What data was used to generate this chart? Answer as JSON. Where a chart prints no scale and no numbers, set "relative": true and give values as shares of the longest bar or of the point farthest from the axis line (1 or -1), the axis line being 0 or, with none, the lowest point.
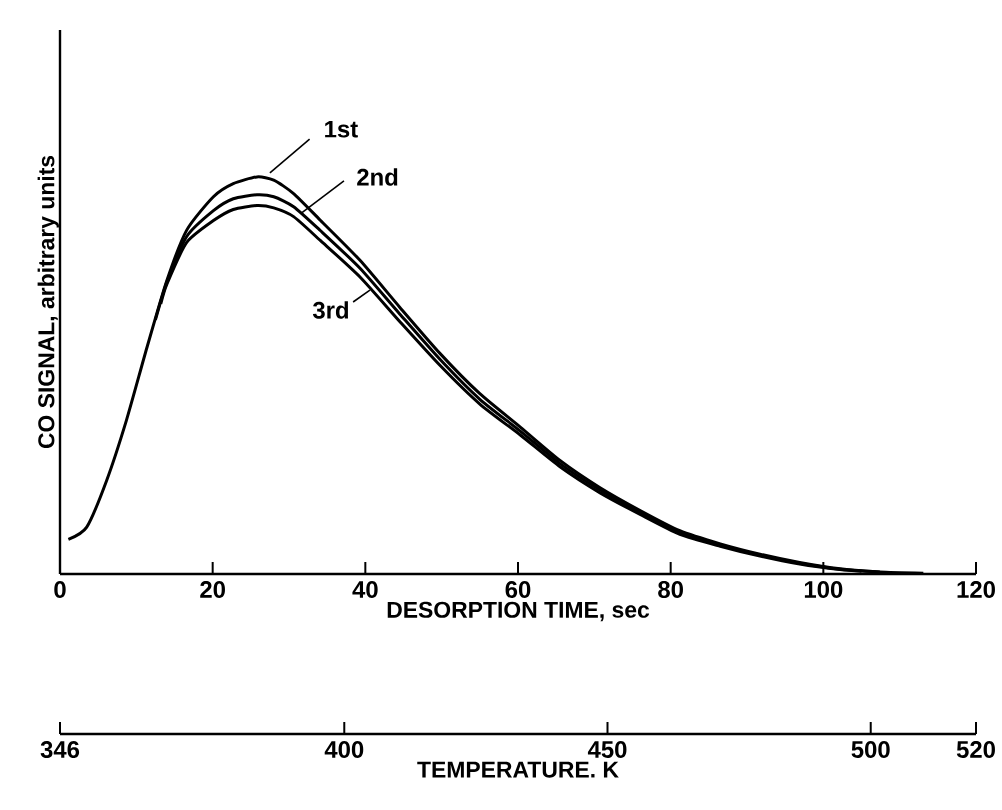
{
  "chart_data": {
    "type": "line",
    "xlabel": "DESORPTION TIME, sec",
    "ylabel": "CO SIGNAL, arbitrary units",
    "x2label": "TEMPERATURE. K",
    "relative": true,
    "marker": "none",
    "line_style": "solid",
    "xlim": [
      0,
      120
    ],
    "xticks": [
      0,
      20,
      40,
      60,
      80,
      100,
      120
    ],
    "x2lim": [
      346,
      520
    ],
    "x2ticks": [
      346,
      400,
      450,
      500,
      520
    ],
    "x": [
      1.1,
      3.5,
      6.1,
      8.7,
      11.4,
      14.0,
      16.6,
      20.1,
      22.7,
      25.8,
      28.0,
      30.6,
      34.1,
      39.3,
      44.5,
      49.8,
      55.0,
      60.3,
      65.5,
      70.7,
      76.0,
      81.2,
      86.5,
      91.7,
      96.9,
      102.2,
      107.4,
      113.1
    ],
    "series": [
      {
        "name": "1st",
        "color": "#000000",
        "values": [
          0.087,
          0.118,
          0.235,
          0.387,
          0.571,
          0.739,
          0.866,
          0.95,
          0.983,
          1,
          0.992,
          0.958,
          0.891,
          0.79,
          0.672,
          0.555,
          0.454,
          0.37,
          0.286,
          0.218,
          0.16,
          0.109,
          0.076,
          0.05,
          0.029,
          0.013,
          0.005,
          0.002
        ]
      },
      {
        "name": "2nd",
        "color": "#000000",
        "x": [
          12.5,
          14.0,
          16.6,
          20.1,
          22.7,
          25.8,
          28.0,
          30.6,
          34.1,
          39.3,
          44.5,
          49.8,
          55.0,
          60.3,
          65.5,
          70.7,
          76.0,
          81.2,
          86.5,
          91.7,
          96.9,
          102.2,
          107.4
        ],
        "values": [
          0.64,
          0.735,
          0.85,
          0.915,
          0.945,
          0.955,
          0.95,
          0.925,
          0.865,
          0.77,
          0.655,
          0.54,
          0.44,
          0.36,
          0.278,
          0.212,
          0.155,
          0.105,
          0.073,
          0.047,
          0.027,
          0.012,
          0.005
        ]
      },
      {
        "name": "3rd",
        "color": "#000000",
        "x": [
          13.2,
          14.0,
          16.6,
          20.1,
          22.7,
          25.8,
          28.0,
          30.6,
          34.1,
          39.3,
          44.5,
          49.8,
          55.0,
          60.3,
          65.5,
          70.7,
          76.0,
          81.2,
          86.5,
          91.7,
          96.9,
          102.2,
          105.0
        ],
        "values": [
          0.68,
          0.73,
          0.835,
          0.89,
          0.918,
          0.928,
          0.922,
          0.9,
          0.84,
          0.748,
          0.636,
          0.525,
          0.428,
          0.35,
          0.27,
          0.205,
          0.15,
          0.1,
          0.07,
          0.045,
          0.025,
          0.011,
          0.007
        ]
      }
    ]
  }
}
